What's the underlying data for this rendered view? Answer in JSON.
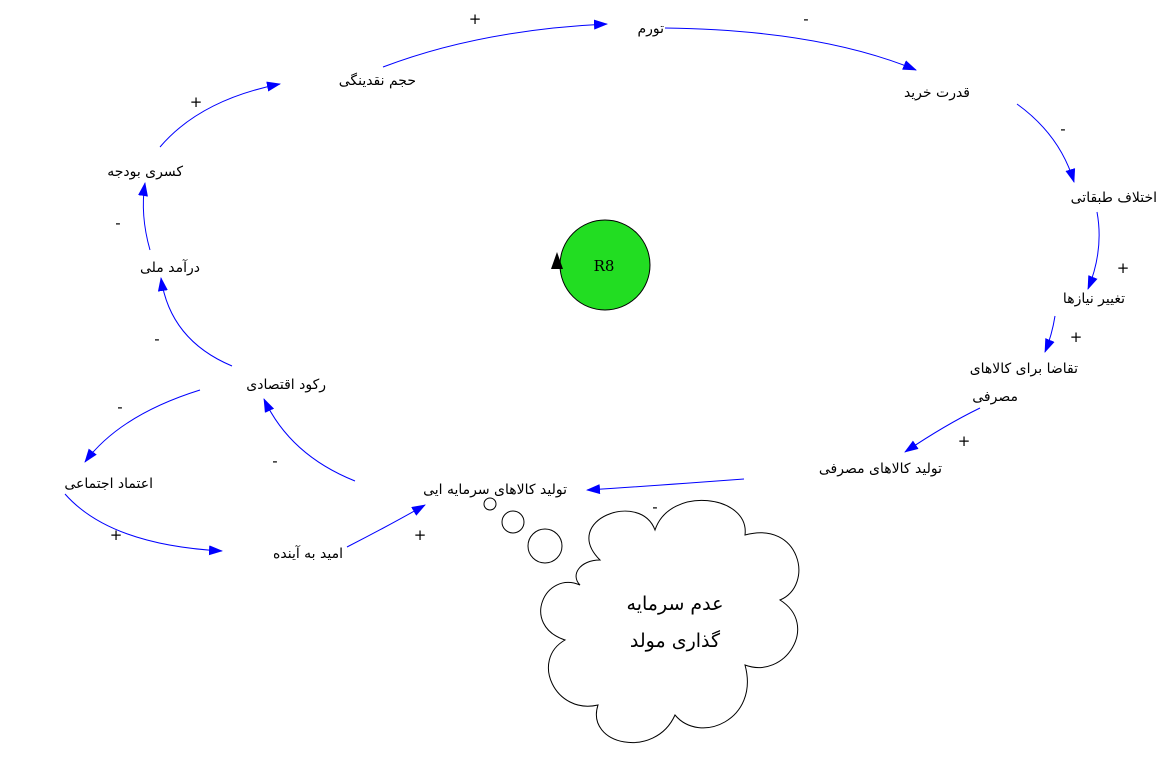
{
  "nodes": {
    "tavarrom": "تورم",
    "ghodrat_kharid": "قدرت خرید",
    "ekhtelaf": "اختلاف طبقاتی",
    "taghyir_niaz": "تغییر نیازها",
    "taghaza_line1": "تقاضا برای کالاهای",
    "taghaza_line2": "مصرفی",
    "tolid_masrafi": "تولید کالاهای مصرفی",
    "tolid_sarmaye": "تولید کالاهای سرمایه ایی",
    "omid": "امید به آینده",
    "etemad": "اعتماد اجتماعی",
    "rokud": "رکود اقتصادی",
    "daramad": "درآمد ملی",
    "kasri": "کسری بودجه",
    "hajm": "حجم نقدینگی"
  },
  "polarities": {
    "hajm_to_tavarrom": "+",
    "tavarrom_to_ghodrat": "-",
    "ghodrat_to_ekhtelaf": "-",
    "ekhtelaf_to_taghyir": "+",
    "taghyir_to_taghaza": "+",
    "taghaza_to_tolid": "+",
    "tolid_to_sarmaye": "-",
    "sarmaye_to_rokud": "-",
    "rokud_to_etemad": "-",
    "etemad_to_omid": "+",
    "omid_to_sarmaye": "+",
    "rokud_to_daramad": "-",
    "daramad_to_kasri": "-",
    "kasri_to_hajm": "+"
  },
  "loop": {
    "label": "R8",
    "color": "#22dd22"
  },
  "cloud": {
    "line1": "عدم سرمایه",
    "line2": "گذاری مولد"
  },
  "colors": {
    "link": "#0000ff"
  }
}
